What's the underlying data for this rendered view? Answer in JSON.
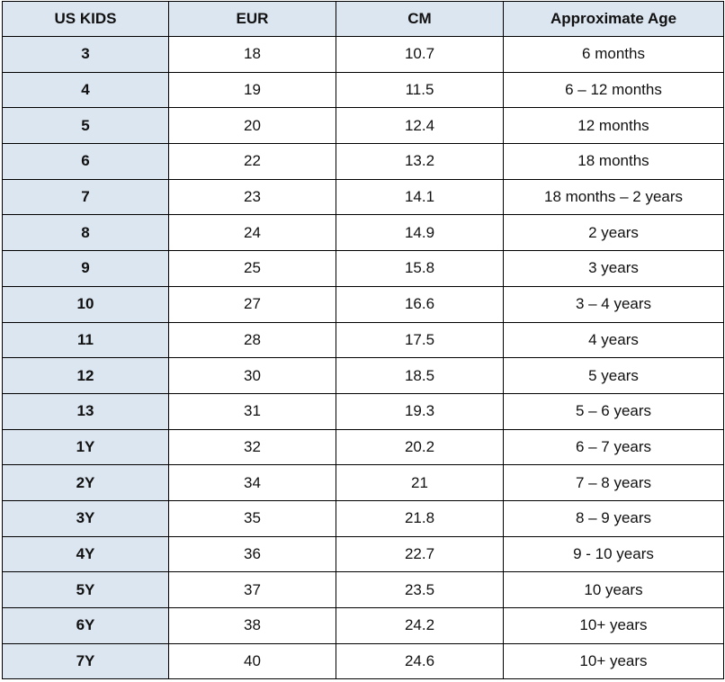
{
  "table": {
    "headers": [
      "US KIDS",
      "EUR",
      "CM",
      "Approximate Age"
    ],
    "rows": [
      [
        "3",
        "18",
        "10.7",
        "6 months"
      ],
      [
        "4",
        "19",
        "11.5",
        "6 – 12 months"
      ],
      [
        "5",
        "20",
        "12.4",
        "12 months"
      ],
      [
        "6",
        "22",
        "13.2",
        "18 months"
      ],
      [
        "7",
        "23",
        "14.1",
        "18 months – 2 years"
      ],
      [
        "8",
        "24",
        "14.9",
        "2 years"
      ],
      [
        "9",
        "25",
        "15.8",
        "3 years"
      ],
      [
        "10",
        "27",
        "16.6",
        "3 – 4 years"
      ],
      [
        "11",
        "28",
        "17.5",
        "4 years"
      ],
      [
        "12",
        "30",
        "18.5",
        "5 years"
      ],
      [
        "13",
        "31",
        "19.3",
        "5 – 6 years"
      ],
      [
        "1Y",
        "32",
        "20.2",
        "6 – 7 years"
      ],
      [
        "2Y",
        "34",
        "21",
        "7 – 8 years"
      ],
      [
        "3Y",
        "35",
        "21.8",
        "8 – 9 years"
      ],
      [
        "4Y",
        "36",
        "22.7",
        "9 - 10 years"
      ],
      [
        "5Y",
        "37",
        "23.5",
        "10 years"
      ],
      [
        "6Y",
        "38",
        "24.2",
        "10+ years"
      ],
      [
        "7Y",
        "40",
        "24.6",
        "10+ years"
      ]
    ]
  }
}
